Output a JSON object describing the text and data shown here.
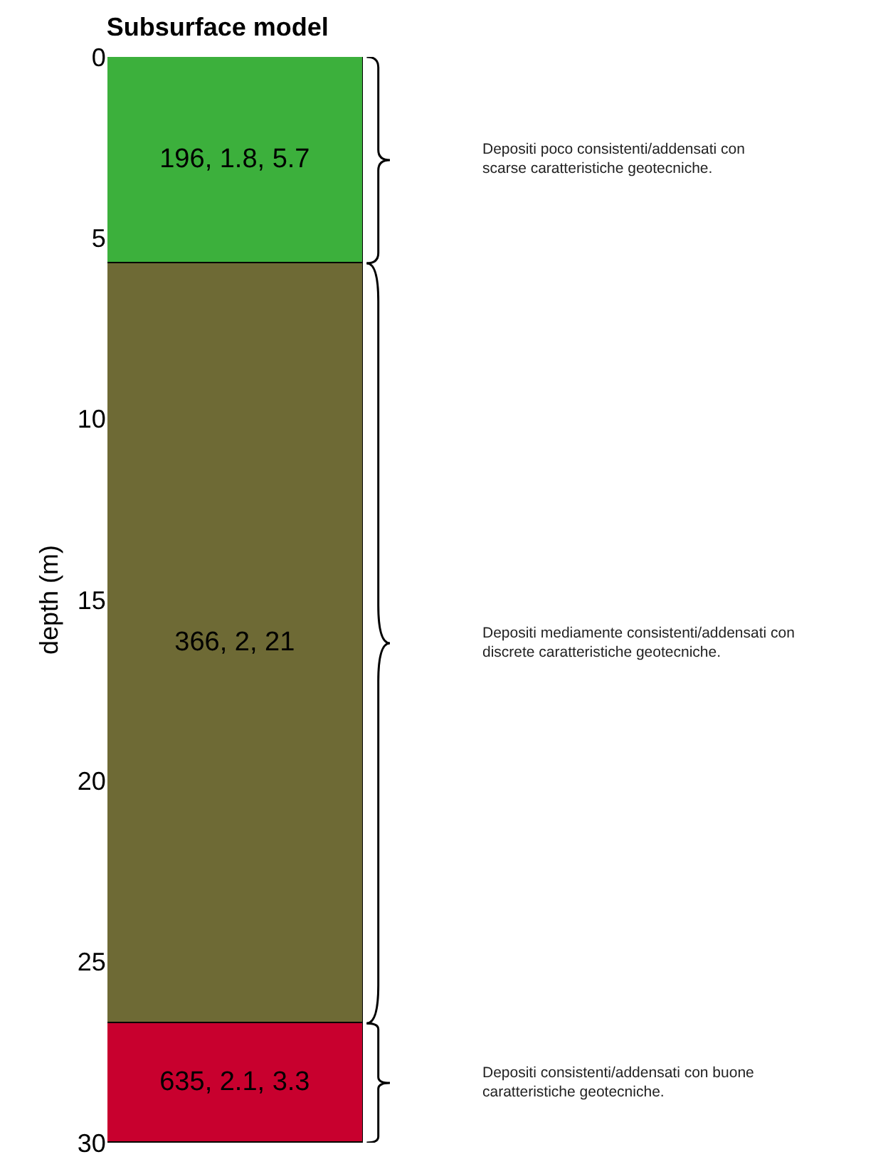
{
  "chart_data": {
    "type": "bar",
    "stacked": true,
    "title": "Subsurface model",
    "ylabel": "depth (m)",
    "categories": [
      null
    ],
    "series": [
      {
        "color": "#3cb03c",
        "values": [
          5.7
        ],
        "value_labels": [
          "196, 1.8, 5.7"
        ]
      },
      {
        "color": "#6e6a35",
        "values": [
          21
        ],
        "value_labels": [
          "366, 2, 21"
        ]
      },
      {
        "color": "#c8002e",
        "values": [
          3.3
        ],
        "value_labels": [
          "635, 2.1, 3.3"
        ]
      }
    ],
    "ylim": [
      30,
      0
    ],
    "yticks": [
      0,
      5,
      10,
      15,
      20,
      25,
      30
    ],
    "tick_labels": "y",
    "annotations": [
      "Depositi poco consistenti/addensati con\nscarse caratteristiche geotecniche.",
      "Depositi mediamente consistenti/addensati con\ndiscrete caratteristiche geotecniche.",
      "Depositi consistenti/addensati con buone\ncaratteristiche geotecniche."
    ]
  }
}
